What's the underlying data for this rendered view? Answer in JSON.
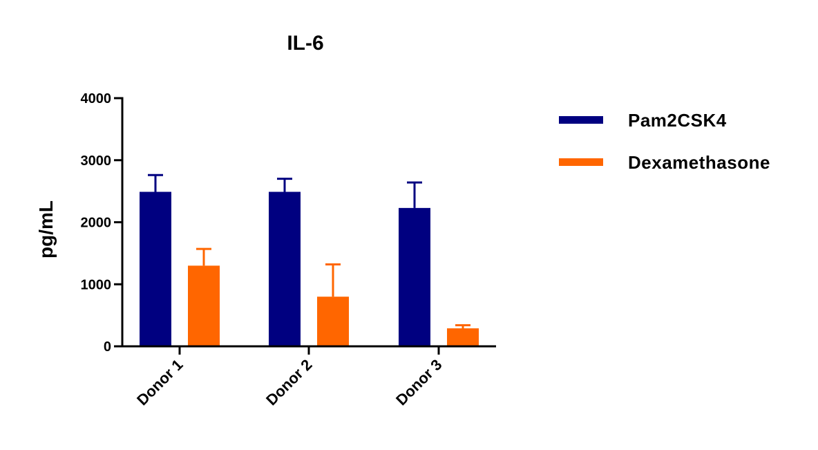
{
  "chart_data": {
    "type": "bar",
    "title": "IL-6",
    "xlabel": "",
    "ylabel": "pg/mL",
    "ylim": [
      0,
      4000
    ],
    "yticks": [
      "0",
      "1000",
      "2000",
      "3000",
      "4000"
    ],
    "categories": [
      "Donor 1",
      "Donor 2",
      "Donor 3"
    ],
    "series": [
      {
        "name": "Pam2CSK4",
        "color": "#000080",
        "values": [
          2490,
          2490,
          2230
        ],
        "error_upper": [
          2760,
          2700,
          2640
        ]
      },
      {
        "name": "Dexamethasone",
        "color": "#ff6600",
        "values": [
          1300,
          800,
          290
        ],
        "error_upper": [
          1570,
          1320,
          340
        ]
      }
    ],
    "legend": "right",
    "grid": false
  }
}
